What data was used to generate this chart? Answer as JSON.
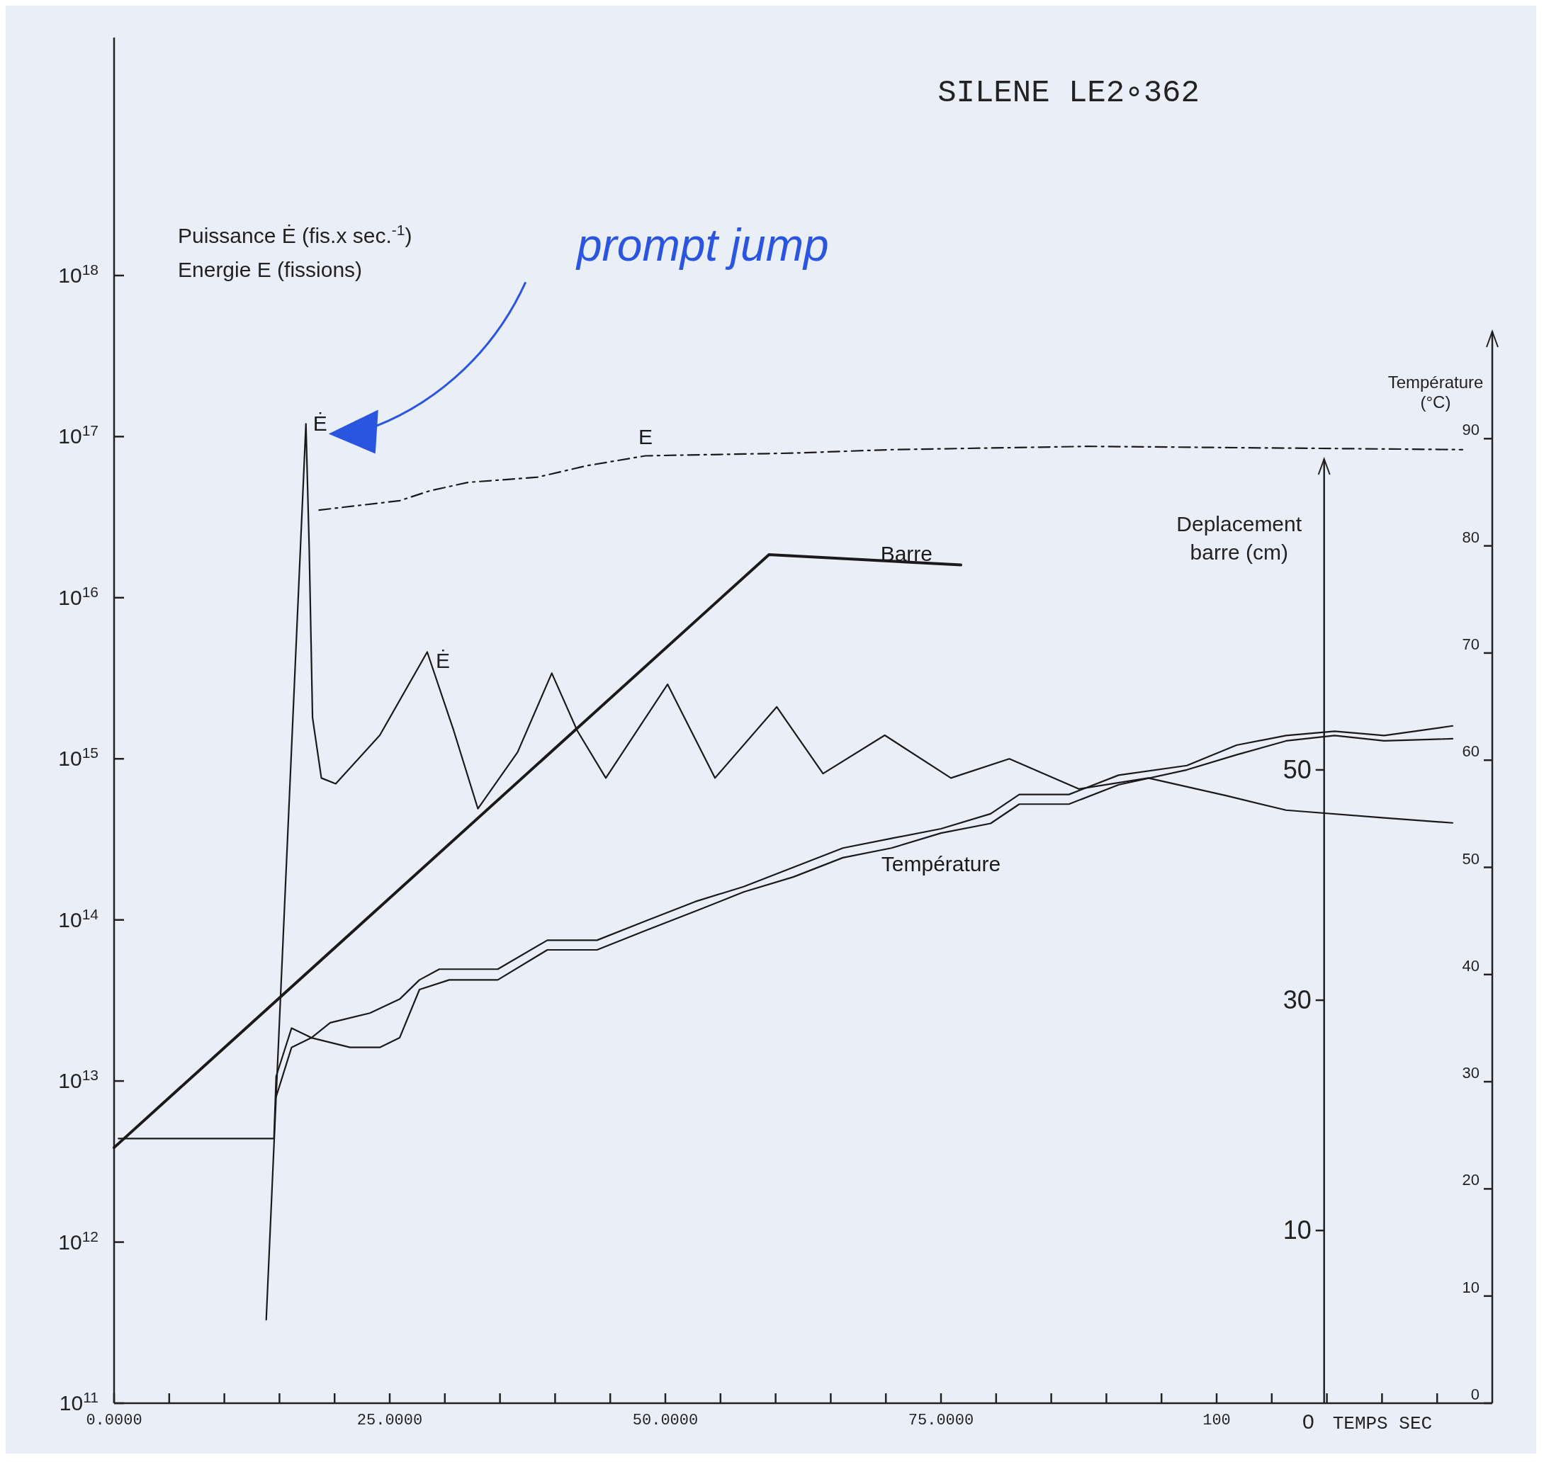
{
  "chart_data": {
    "type": "line",
    "title": "SILENE LE2∘362",
    "ylabel": "Puissance Ė (fis.x sec.$^{-1}$)\nEnergie E (fissions)",
    "y2label": "Température\n(°C)",
    "y3label": "Deplacement\nbarre (cm)",
    "xlabel": "TEMPS SEC",
    "log": "y",
    "marker": "none",
    "xlim": [
      0,
      125
    ],
    "xticks": [
      {
        "value": 0,
        "label": "0.0000"
      },
      {
        "value": 5,
        "label": null
      },
      {
        "value": 10,
        "label": null
      },
      {
        "value": 15,
        "label": null
      },
      {
        "value": 20,
        "label": null
      },
      {
        "value": 25,
        "label": "25.0000"
      },
      {
        "value": 30,
        "label": null
      },
      {
        "value": 35,
        "label": null
      },
      {
        "value": 40,
        "label": null
      },
      {
        "value": 45,
        "label": null
      },
      {
        "value": 50,
        "label": "50.0000"
      },
      {
        "value": 55,
        "label": null
      },
      {
        "value": 60,
        "label": null
      },
      {
        "value": 65,
        "label": null
      },
      {
        "value": 70,
        "label": null
      },
      {
        "value": 75,
        "label": "75.0000"
      },
      {
        "value": 80,
        "label": null
      },
      {
        "value": 85,
        "label": null
      },
      {
        "value": 90,
        "label": null
      },
      {
        "value": 95,
        "label": null
      },
      {
        "value": 100,
        "label": "100"
      },
      {
        "value": 105,
        "label": null
      },
      {
        "value": 110,
        "label": null
      },
      {
        "value": 115,
        "label": null
      },
      {
        "value": 120,
        "label": null
      }
    ],
    "ylim": [
      100000000000.0,
      3e+19
    ],
    "yticks": [
      {
        "value": 100000000000.0,
        "label": "10$^{11}$"
      },
      {
        "value": 1000000000000.0,
        "label": "10$^{12}$"
      },
      {
        "value": 10000000000000.0,
        "label": "10$^{13}$"
      },
      {
        "value": 100000000000000.0,
        "label": "10$^{14}$"
      },
      {
        "value": 1000000000000000.0,
        "label": "10$^{15}$"
      },
      {
        "value": 1e+16,
        "label": "10$^{16}$"
      },
      {
        "value": 1e+17,
        "label": "10$^{17}$"
      },
      {
        "value": 1e+18,
        "label": "10$^{18}$"
      }
    ],
    "y2lim": [
      0,
      100
    ],
    "y2ticks": [
      0,
      10,
      20,
      30,
      40,
      50,
      60,
      70,
      80,
      90
    ],
    "y3lim": [
      -5,
      77
    ],
    "y3ticks": [
      10,
      30,
      50
    ],
    "series": [
      {
        "name": "Ė",
        "color": "#1a1a1a",
        "line_style": "solid",
        "x": [
          13.8,
          17.4,
          17.7,
          18.0,
          18.8,
          20.1,
          24.1,
          28.4,
          30.8,
          33.0,
          36.6,
          39.7,
          42.0,
          44.6,
          50.2,
          54.5,
          60.1,
          64.3,
          69.9,
          75.9,
          81.2,
          87.5,
          93.8,
          100.9,
          106.3,
          115.2,
          121.4
        ],
        "values": [
          330000000000.0,
          1.2e+17,
          2e+16,
          1800000000000000.0,
          760000000000000.0,
          700000000000000.0,
          1400000000000000.0,
          4600000000000000.0,
          1500000000000000.0,
          490000000000000.0,
          1100000000000000.0,
          3400000000000000.0,
          1500000000000000.0,
          760000000000000.0,
          2900000000000000.0,
          760000000000000.0,
          2100000000000000.0,
          810000000000000.0,
          1400000000000000.0,
          760000000000000.0,
          1000000000000000.0,
          650000000000000.0,
          760000000000000.0,
          590000000000000.0,
          480000000000000.0,
          430000000000000.0,
          400000000000000.0
        ]
      },
      {
        "name": "E",
        "color": "#1a1a1a",
        "line_style": "dashed",
        "x": [
          18.6,
          25.9,
          28.6,
          32.1,
          38.4,
          42.9,
          48.2,
          61.6,
          70.5,
          88.4,
          122.3
        ],
        "values": [
          3.5e+16,
          4e+16,
          4.6e+16,
          5.2e+16,
          5.6e+16,
          6.6e+16,
          7.6e+16,
          7.9e+16,
          8.3e+16,
          8.7e+16,
          8.3e+16
        ]
      },
      {
        "name": "Barre",
        "color": "#1a1a1a",
        "line_style": "solid",
        "axis": "y3",
        "x": [
          0,
          59.4,
          76.8
        ],
        "values": [
          17.2,
          68.7,
          67.8
        ]
      },
      {
        "name": "Température",
        "color": "#1a1a1a",
        "line_style": "solid",
        "axis": "y2",
        "x": [
          0.4,
          14.5,
          14.7,
          16.1,
          17.9,
          19.6,
          23.2,
          25.9,
          27.7,
          29.5,
          34.8,
          39.3,
          43.8,
          48.2,
          52.7,
          57.1,
          61.6,
          66.1,
          70.5,
          75,
          79.5,
          82.1,
          86.6,
          91.1,
          97.3,
          101.8,
          106.3,
          110.7,
          115.2,
          121.4
        ],
        "values": [
          24.7,
          24.7,
          30.5,
          35,
          34.1,
          35.5,
          36.4,
          37.7,
          39.5,
          40.5,
          40.5,
          43.2,
          43.2,
          45,
          46.8,
          48.2,
          50,
          51.8,
          52.7,
          53.6,
          55,
          56.8,
          56.8,
          58.6,
          59.5,
          61.4,
          62.3,
          62.7,
          62.3,
          63.2
        ]
      },
      {
        "color": "#1a1a1a",
        "line_style": "solid",
        "axis": "y2",
        "x": [
          14.7,
          16.1,
          17.9,
          21.4,
          24.1,
          25.9,
          27.7,
          30.4,
          34.8,
          39.3,
          43.8,
          48.2,
          52.7,
          57.1,
          61.6,
          66.1,
          70.5,
          75,
          79.5,
          82.1,
          86.6,
          91.1,
          97.3,
          101.8,
          106.3,
          110.7,
          115.2,
          121.4
        ],
        "values": [
          28.6,
          33.2,
          34.1,
          33.2,
          33.2,
          34.1,
          38.6,
          39.5,
          39.5,
          42.3,
          42.3,
          44.1,
          45.9,
          47.7,
          49.1,
          50.9,
          51.8,
          53.2,
          54.1,
          55.9,
          55.9,
          57.7,
          59.1,
          60.5,
          61.8,
          62.3,
          61.8,
          62
        ]
      }
    ],
    "annotations": [
      "prompt jump",
      "Ė",
      "0"
    ]
  }
}
